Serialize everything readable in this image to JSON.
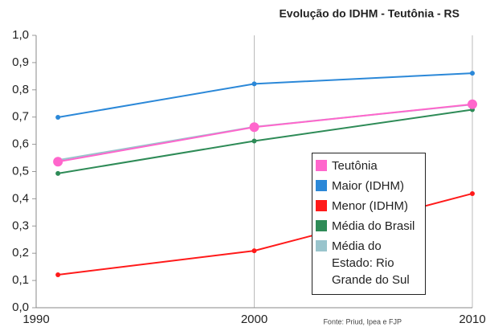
{
  "chart_data": {
    "type": "line",
    "title": "Evolução do IDHM - Teutônia - RS",
    "source": "Fonte: Priud, Ipea e FJP",
    "x": [
      1991,
      2000,
      2010
    ],
    "series": [
      {
        "name": "Teutônia",
        "color": "#ff66cc",
        "marker_size": 6,
        "values": [
          0.536,
          0.663,
          0.747
        ]
      },
      {
        "name": "Maior (IDHM)",
        "color": "#2b88d8",
        "marker_size": 3,
        "values": [
          0.699,
          0.822,
          0.861
        ]
      },
      {
        "name": "Menor (IDHM)",
        "color": "#ff1a1a",
        "marker_size": 3,
        "values": [
          0.121,
          0.209,
          0.419
        ]
      },
      {
        "name": "Média do Brasil",
        "color": "#2e8b57",
        "marker_size": 3,
        "values": [
          0.493,
          0.612,
          0.727
        ]
      },
      {
        "name": "Média do Estado: Rio Grande do Sul",
        "color": "#99c4cc",
        "marker_size": 3,
        "values": [
          0.542,
          0.664,
          0.746
        ]
      }
    ],
    "xlim": [
      1990,
      2010
    ],
    "xticks": [
      1990,
      2000,
      2010
    ],
    "ylim": [
      0,
      1
    ],
    "yticks": [
      {
        "value": 0,
        "label": "0,0"
      },
      {
        "value": 0.1,
        "label": "0,1"
      },
      {
        "value": 0.2,
        "label": "0,2"
      },
      {
        "value": 0.3,
        "label": "0,3"
      },
      {
        "value": 0.4,
        "label": "0,4"
      },
      {
        "value": 0.5,
        "label": "0,5"
      },
      {
        "value": 0.6,
        "label": "0,6"
      },
      {
        "value": 0.7,
        "label": "0,7"
      },
      {
        "value": 0.8,
        "label": "0,8"
      },
      {
        "value": 0.9,
        "label": "0,9"
      },
      {
        "value": 1,
        "label": "1,0"
      }
    ],
    "xgrid": true
  }
}
